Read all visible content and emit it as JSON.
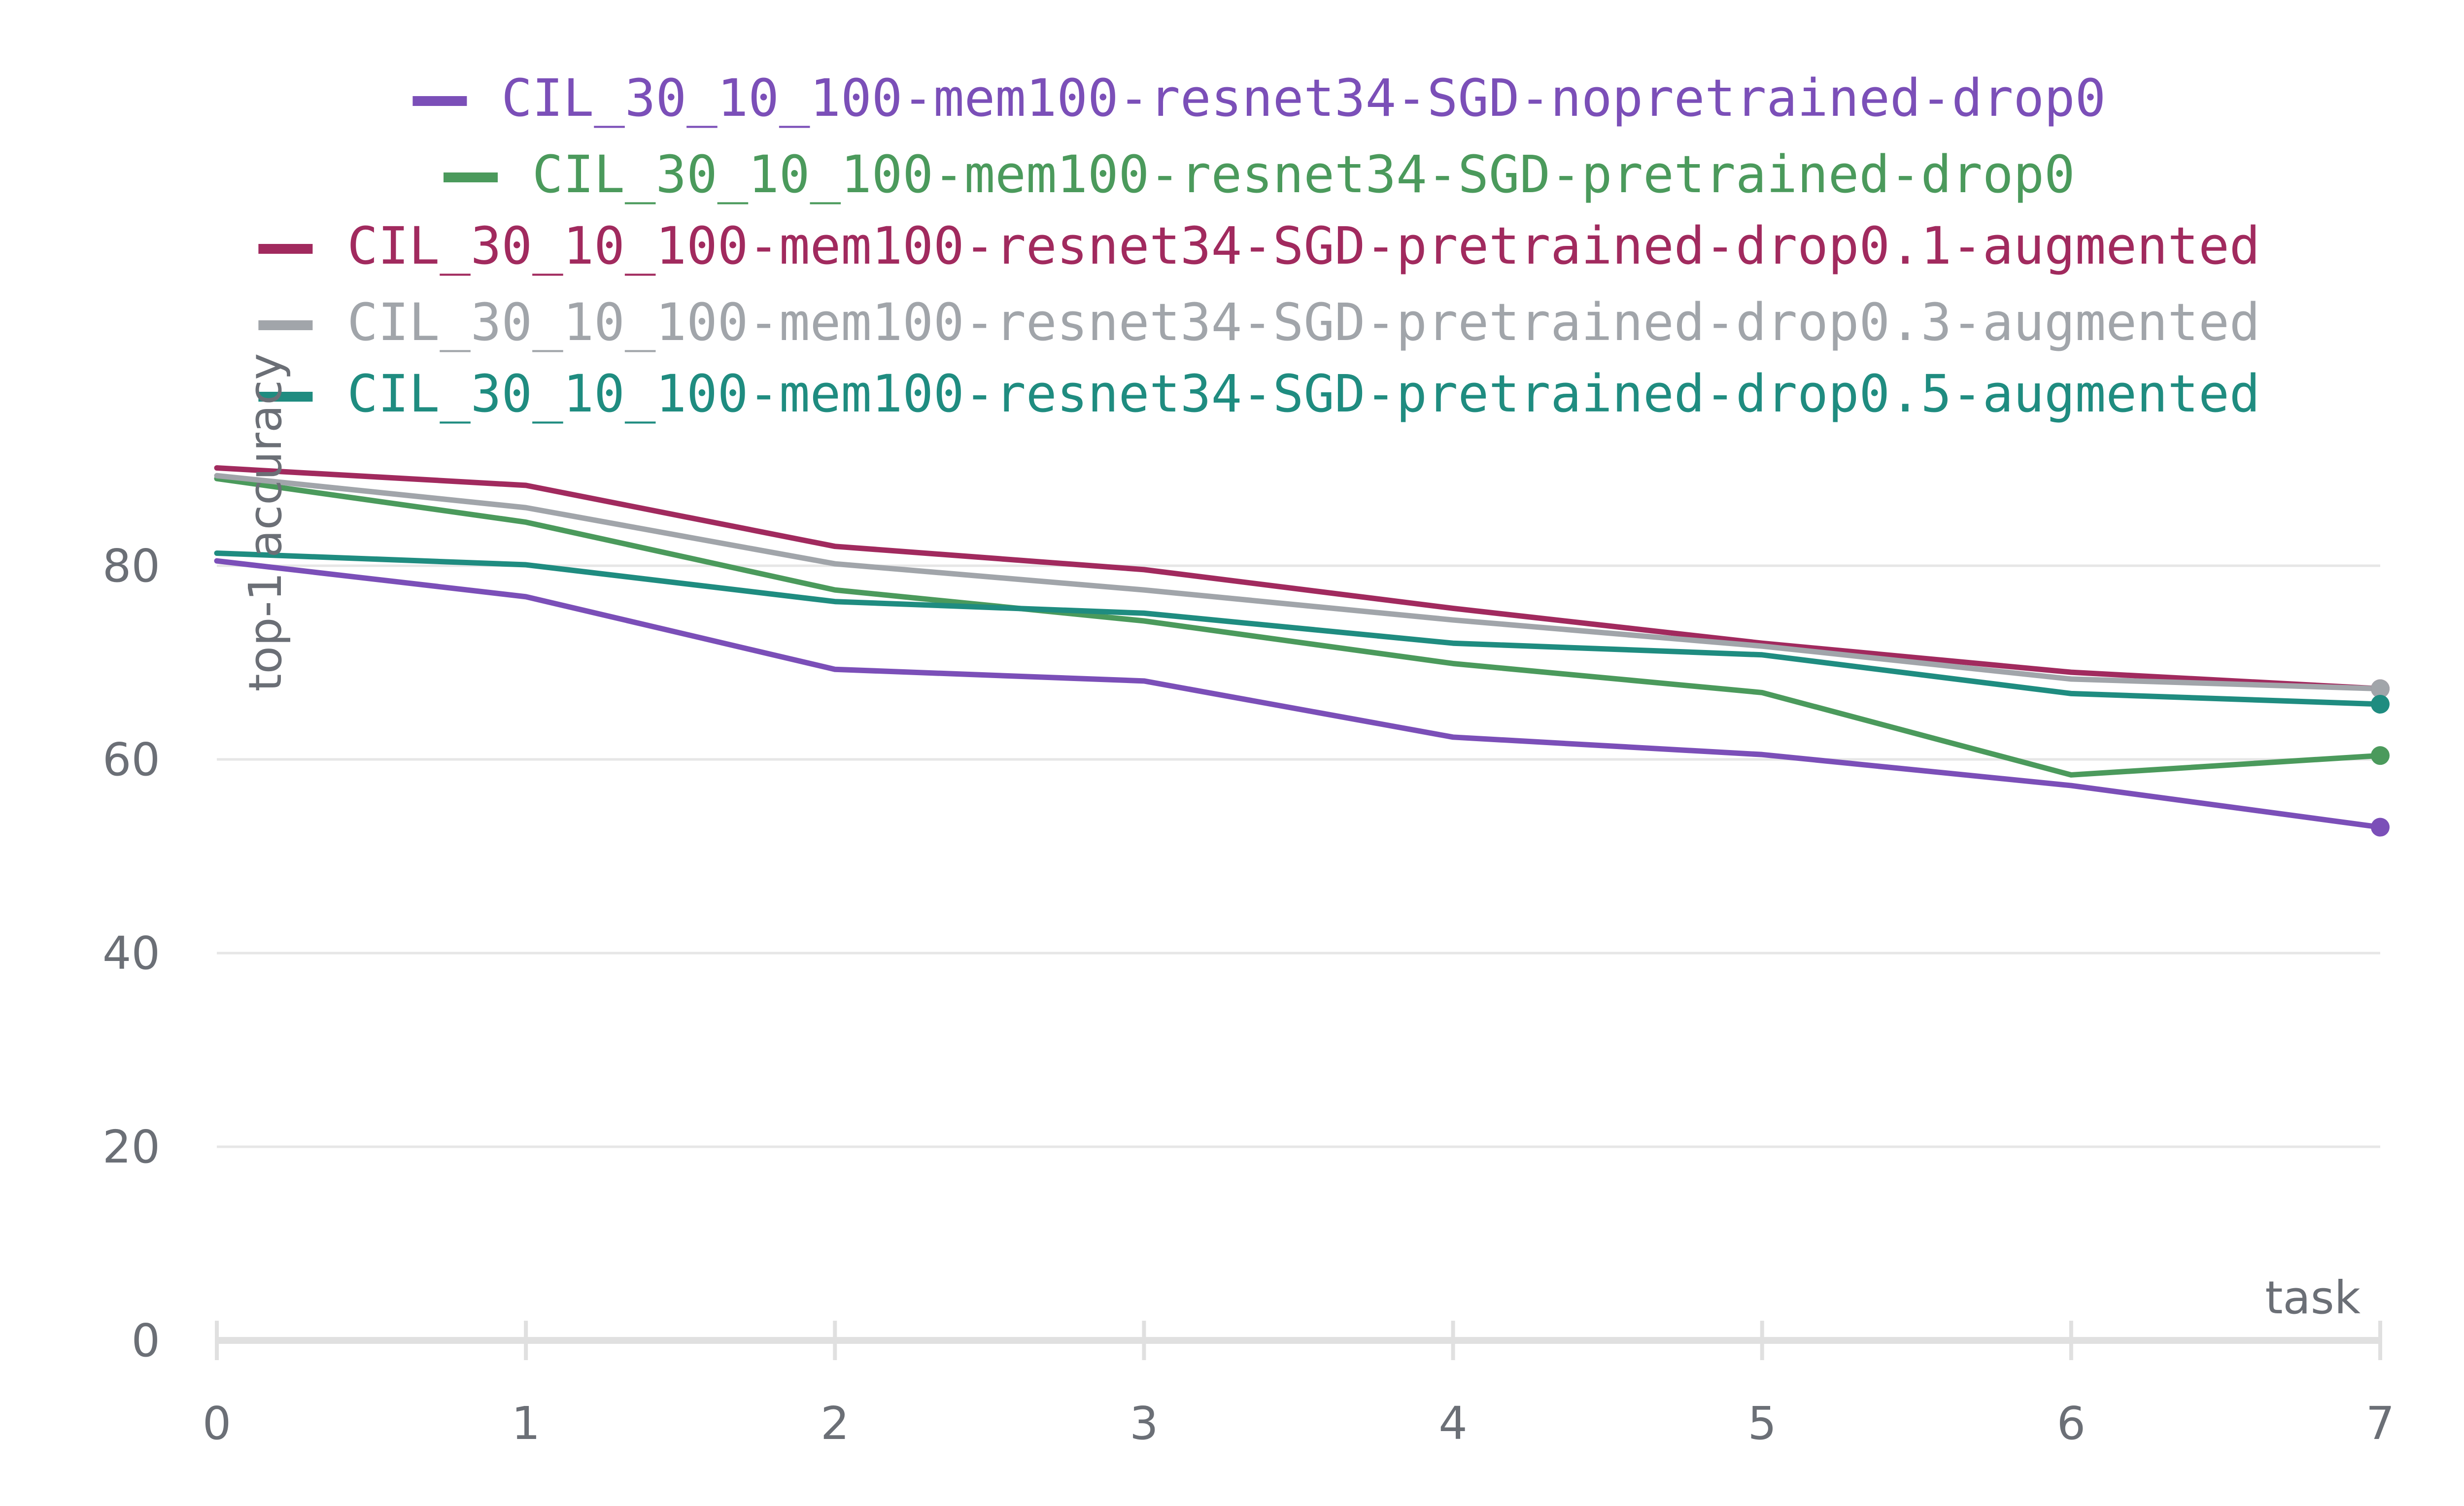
{
  "chart_data": {
    "type": "line",
    "xlabel": "task",
    "ylabel": "top-1 accuracy",
    "x": [
      0,
      1,
      2,
      3,
      4,
      5,
      6,
      7
    ],
    "xlim": [
      0,
      7
    ],
    "ylim": [
      0,
      90
    ],
    "yticks": [
      0,
      20,
      40,
      60,
      80
    ],
    "xticks": [
      0,
      1,
      2,
      3,
      4,
      5,
      6,
      7
    ],
    "grid": true,
    "legend_position": "top-center",
    "series": [
      {
        "name": "CIL_30_10_100-mem100-resnet34-SGD-nopretrained-drop0",
        "color": "#7b4fb8",
        "values": [
          80.5,
          76.8,
          69.3,
          68.1,
          62.3,
          60.5,
          57.3,
          53.0
        ]
      },
      {
        "name": "CIL_30_10_100-mem100-resnet34-SGD-pretrained-drop0",
        "color": "#4b9a5c",
        "values": [
          89.0,
          84.5,
          77.5,
          74.3,
          69.9,
          66.9,
          58.4,
          60.4
        ]
      },
      {
        "name": "CIL_30_10_100-mem100-resnet34-SGD-pretrained-drop0.1-augmented",
        "color": "#a12a5e",
        "values": [
          90.1,
          88.3,
          82.0,
          79.6,
          75.6,
          72.0,
          69.0,
          67.3
        ]
      },
      {
        "name": "CIL_30_10_100-mem100-resnet34-SGD-pretrained-drop0.3-augmented",
        "color": "#a1a5aa",
        "values": [
          89.3,
          86.0,
          80.2,
          77.5,
          74.4,
          71.7,
          68.3,
          67.3
        ]
      },
      {
        "name": "CIL_30_10_100-mem100-resnet34-SGD-pretrained-drop0.5-augmented",
        "color": "#1f8c80",
        "values": [
          81.3,
          80.1,
          76.3,
          75.1,
          72.0,
          70.8,
          66.8,
          65.7
        ]
      }
    ]
  }
}
